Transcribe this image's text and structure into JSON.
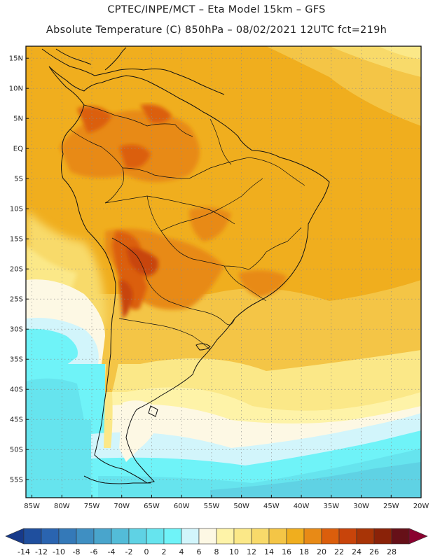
{
  "header": {
    "line1": "CPTEC/INPE/MCT –  Eta Model 15km – GFS",
    "line2": "Absolute Temperature (C) 850hPa – 08/02/2021 12UTC fct=219h"
  },
  "map": {
    "lon_range": [
      -86,
      -20
    ],
    "lat_range": [
      -58,
      17
    ],
    "lat_ticks": [
      {
        "value": 15,
        "label": "15N"
      },
      {
        "value": 10,
        "label": "10N"
      },
      {
        "value": 5,
        "label": "5N"
      },
      {
        "value": 0,
        "label": "EQ"
      },
      {
        "value": -5,
        "label": "5S"
      },
      {
        "value": -10,
        "label": "10S"
      },
      {
        "value": -15,
        "label": "15S"
      },
      {
        "value": -20,
        "label": "20S"
      },
      {
        "value": -25,
        "label": "25S"
      },
      {
        "value": -30,
        "label": "30S"
      },
      {
        "value": -35,
        "label": "35S"
      },
      {
        "value": -40,
        "label": "40S"
      },
      {
        "value": -45,
        "label": "45S"
      },
      {
        "value": -50,
        "label": "50S"
      },
      {
        "value": -55,
        "label": "55S"
      }
    ],
    "lon_ticks": [
      {
        "value": -85,
        "label": "85W"
      },
      {
        "value": -80,
        "label": "80W"
      },
      {
        "value": -75,
        "label": "75W"
      },
      {
        "value": -70,
        "label": "70W"
      },
      {
        "value": -65,
        "label": "65W"
      },
      {
        "value": -60,
        "label": "60W"
      },
      {
        "value": -55,
        "label": "55W"
      },
      {
        "value": -50,
        "label": "50W"
      },
      {
        "value": -45,
        "label": "45W"
      },
      {
        "value": -40,
        "label": "40W"
      },
      {
        "value": -35,
        "label": "35W"
      },
      {
        "value": -30,
        "label": "30W"
      },
      {
        "value": -25,
        "label": "25W"
      },
      {
        "value": -20,
        "label": "20W"
      }
    ]
  },
  "colorbar": {
    "labels": [
      "-14",
      "-12",
      "-10",
      "-8",
      "-6",
      "-4",
      "-2",
      "0",
      "2",
      "4",
      "6",
      "8",
      "10",
      "12",
      "14",
      "16",
      "18",
      "20",
      "22",
      "24",
      "26",
      "28"
    ],
    "colors": [
      "#173a8a",
      "#1f4f9e",
      "#2a64b0",
      "#3479b8",
      "#3f8fc2",
      "#49a5cc",
      "#53bcd8",
      "#5fd2e4",
      "#66e4ee",
      "#6ff3f8",
      "#d2f5fb",
      "#fdf8e4",
      "#fef3a8",
      "#fbe888",
      "#f8da6a",
      "#f4c546",
      "#f0ae1e",
      "#e88a16",
      "#db5e0c",
      "#c8440a",
      "#a83406",
      "#8a2208",
      "#661018",
      "#8a0030"
    ]
  }
}
